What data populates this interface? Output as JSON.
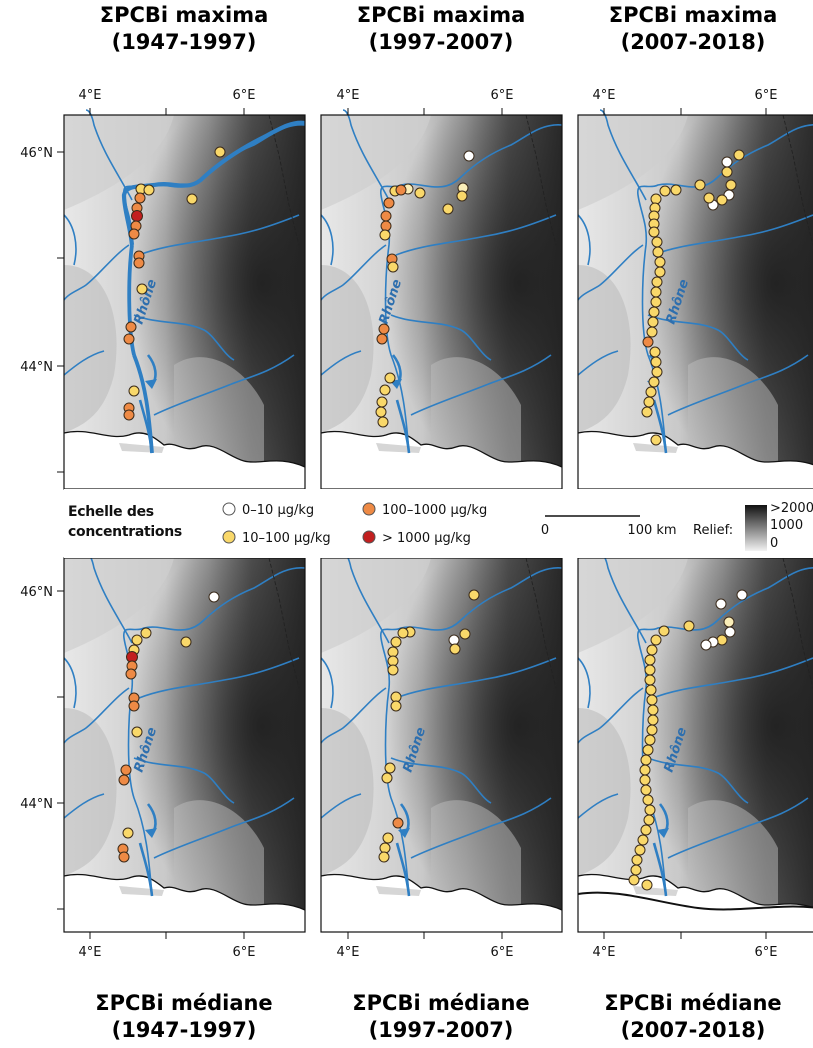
{
  "titles_top": [
    {
      "line1": "ΣPCBi maxima",
      "line2": "(1947-1997)"
    },
    {
      "line1": "ΣPCBi maxima",
      "line2": "(1997-2007)"
    },
    {
      "line1": "ΣPCBi maxima",
      "line2": "(2007-2018)"
    }
  ],
  "titles_bottom": [
    {
      "line1": "ΣPCBi médiane",
      "line2": "(1947-1997)"
    },
    {
      "line1": "ΣPCBi médiane",
      "line2": "(1997-2007)"
    },
    {
      "line1": "ΣPCBi médiane",
      "line2": "(2007-2018)"
    }
  ],
  "axes": {
    "lon_left": "4°E",
    "lon_right": "6°E",
    "lat_top": "46°N",
    "lat_bottom": "44°N"
  },
  "river_label": "Rhône",
  "legend": {
    "title_line1": "Echelle des",
    "title_line2": "concentrations",
    "classes": [
      {
        "label": "0–10 µg/kg",
        "color": "#ffffff"
      },
      {
        "label": "10–100 µg/kg",
        "color": "#f9d86a"
      },
      {
        "label": "100–1000 µg/kg",
        "color": "#ee8a45"
      },
      {
        "label": "> 1000 µg/kg",
        "color": "#c21f1f"
      }
    ],
    "scale_start": "0",
    "scale_end": "100 km",
    "relief_label": "Relief:",
    "relief_ticks": [
      ">2000",
      "1000",
      "0"
    ]
  },
  "colors": {
    "river": "#2f7fc3",
    "marker_edge": "#3a2a1a",
    "coast": "#111111"
  }
}
